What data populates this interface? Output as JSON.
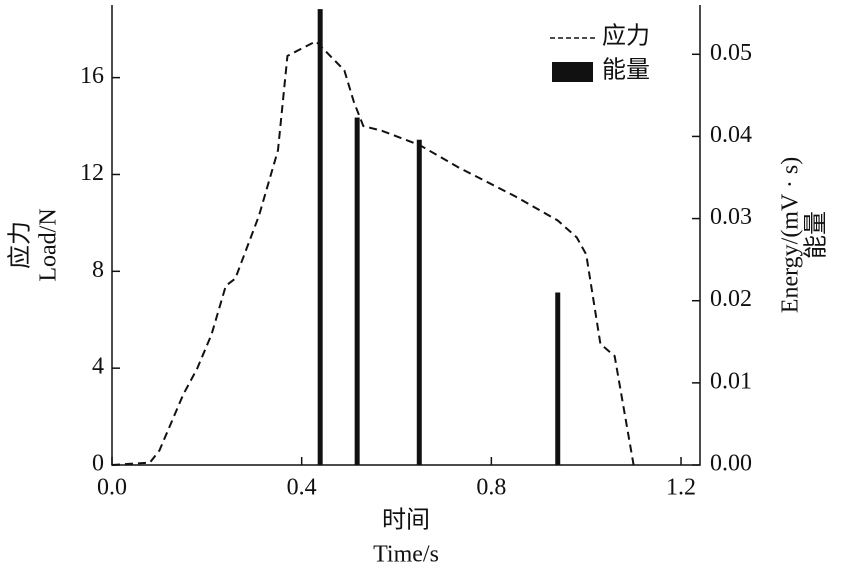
{
  "chart_data": {
    "type": "line_bar",
    "xlabel": [
      "时间",
      "Time/s"
    ],
    "ylabel": [
      "应力",
      "Load/N"
    ],
    "y2label": [
      "Energy/(mV · s)",
      "能量"
    ],
    "xlim": [
      0,
      1.24
    ],
    "ylim": [
      0,
      19
    ],
    "y2lim": [
      0,
      0.056
    ],
    "xticks": [
      {
        "value": 0,
        "label": "0.0"
      },
      {
        "value": 0.4,
        "label": "0.4"
      },
      {
        "value": 0.8,
        "label": "0.8"
      },
      {
        "value": 1.2,
        "label": "1.2"
      }
    ],
    "yticks": [
      0,
      4,
      8,
      12,
      16
    ],
    "y2ticks": [
      {
        "value": 0,
        "label": "0.00"
      },
      {
        "value": 0.01,
        "label": "0.01"
      },
      {
        "value": 0.02,
        "label": "0.02"
      },
      {
        "value": 0.03,
        "label": "0.03"
      },
      {
        "value": 0.04,
        "label": "0.04"
      },
      {
        "value": 0.05,
        "label": "0.05"
      }
    ],
    "legend": "upper right",
    "series": [
      {
        "name": "应力",
        "type": "line",
        "color": "#111111",
        "x": [
          0,
          0.08,
          0.1,
          0.15,
          0.18,
          0.21,
          0.24,
          0.26,
          0.31,
          0.35,
          0.37,
          0.43,
          0.49,
          0.51,
          0.53,
          0.57,
          0.65,
          0.73,
          0.85,
          0.94,
          0.98,
          1.0,
          1.03,
          1.06,
          1.1
        ],
        "values": [
          0,
          0.1,
          0.6,
          2.9,
          4,
          5.4,
          7.4,
          7.7,
          10.3,
          13,
          16.9,
          17.5,
          16.3,
          15,
          14,
          13.8,
          13.2,
          12.3,
          11.1,
          10.1,
          9.4,
          8.7,
          5,
          4.5,
          0
        ]
      },
      {
        "name": "能量",
        "type": "bar",
        "axis": "y2",
        "color": "#111111",
        "x": [
          0.439,
          0.517,
          0.648,
          0.94
        ],
        "values": [
          0.0555,
          0.0423,
          0.0396,
          0.021
        ]
      }
    ]
  }
}
